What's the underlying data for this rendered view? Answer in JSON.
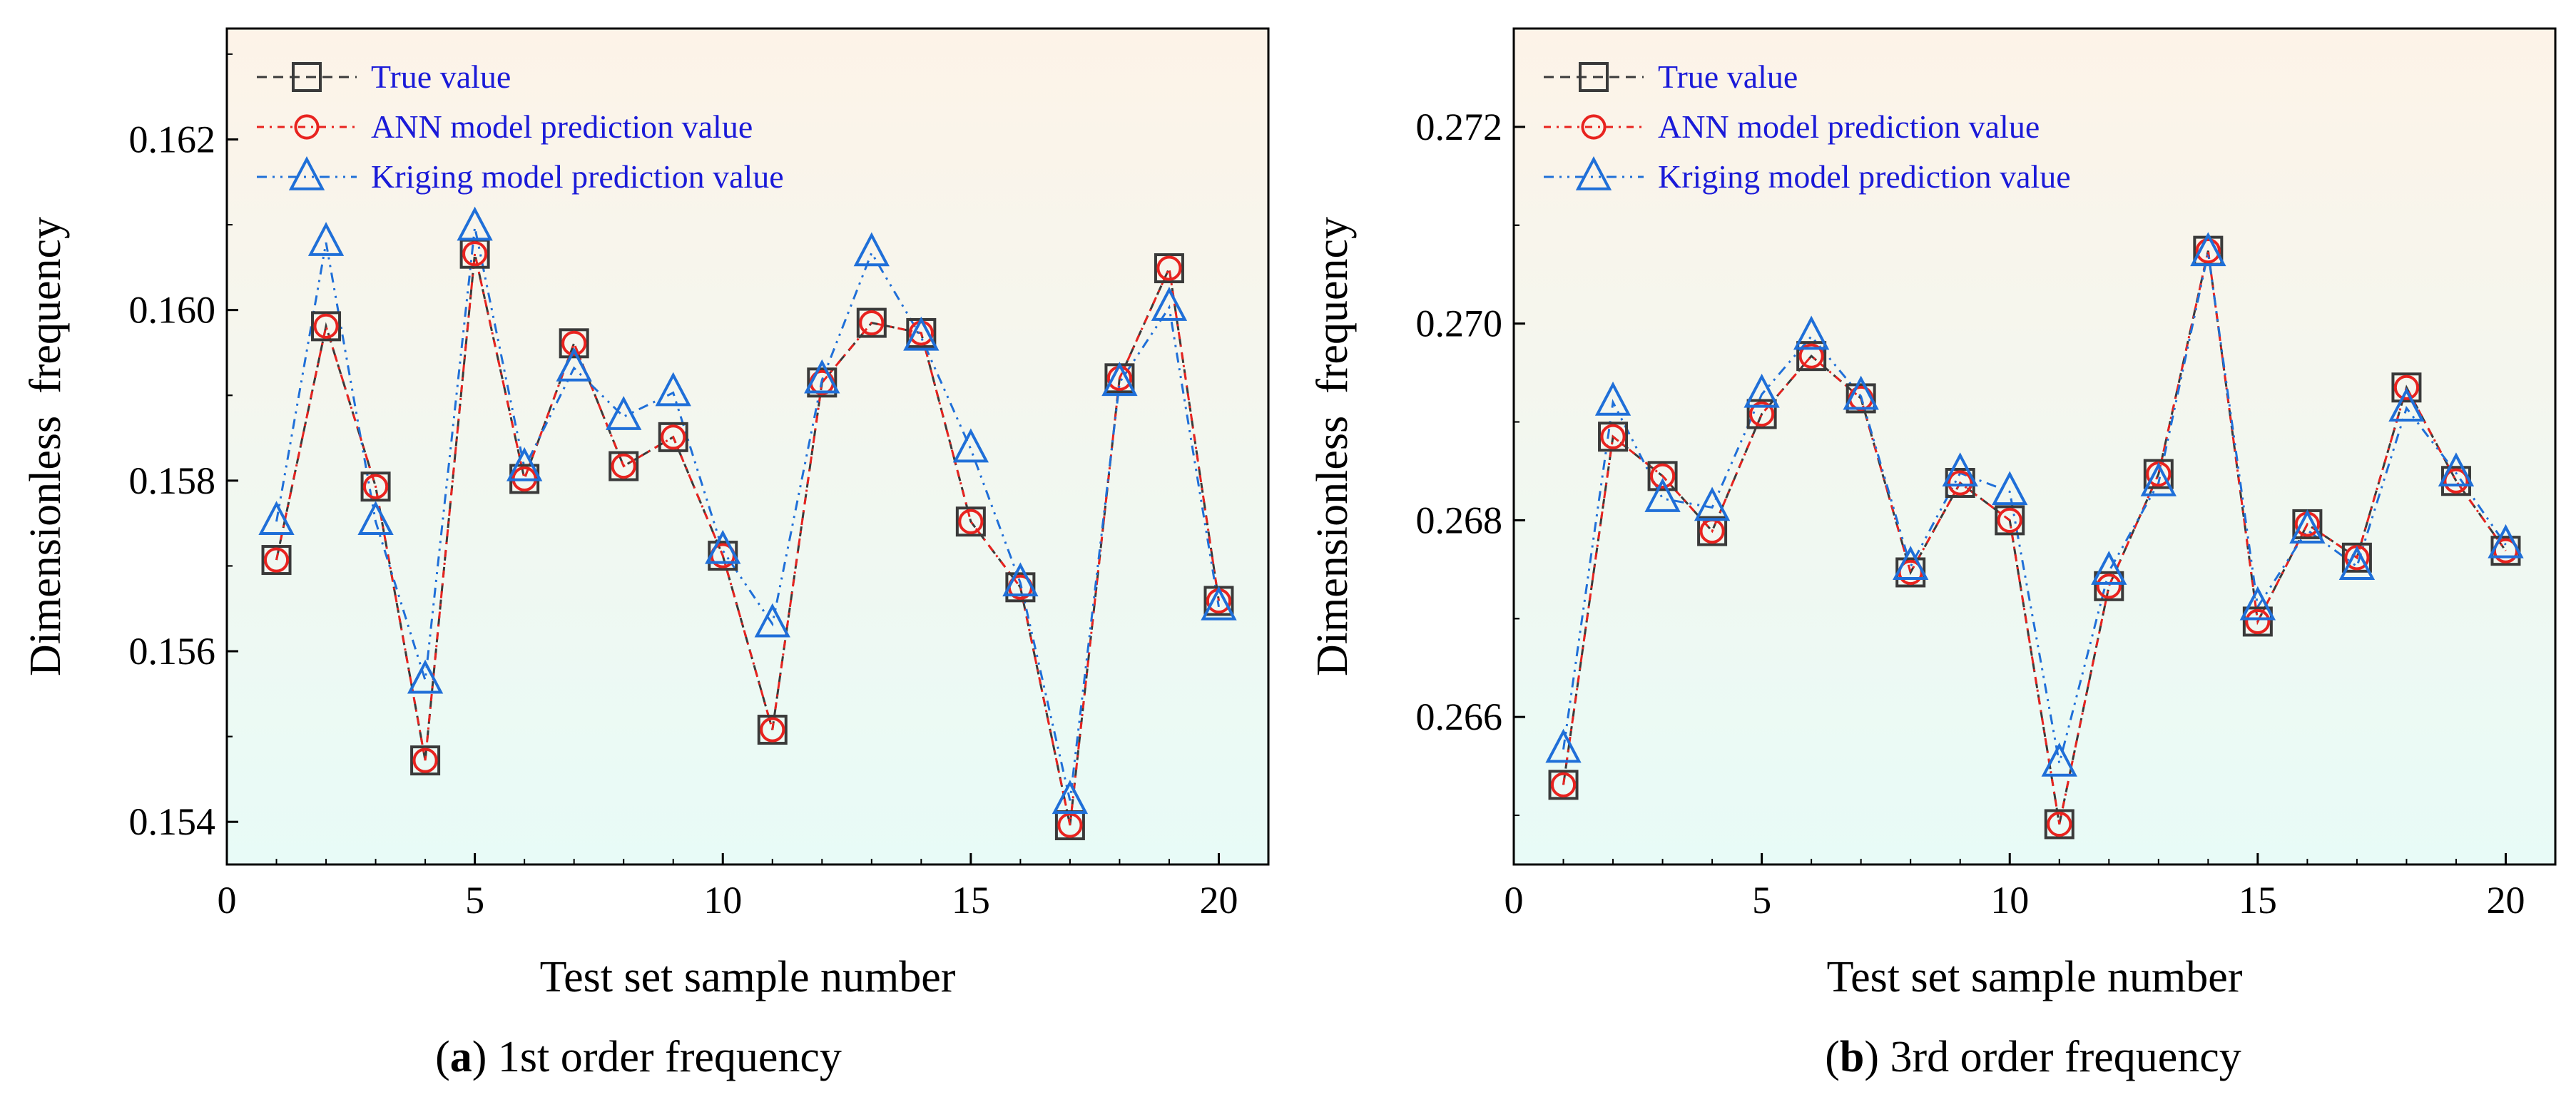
{
  "chart_data": [
    {
      "id": "a",
      "type": "line",
      "caption": {
        "letter": "a",
        "text": " 1st order frequency"
      },
      "xlabel": "Test set sample number",
      "ylabel": "Dimensionless  frequency",
      "xlim": [
        0,
        21
      ],
      "ylim": [
        0.1535,
        0.1633
      ],
      "xticks": [
        0,
        5,
        10,
        15,
        20
      ],
      "xtick_labels": [
        "0",
        "5",
        "10",
        "15",
        "20"
      ],
      "yticks": [
        0.154,
        0.156,
        0.158,
        0.16,
        0.162
      ],
      "ytick_labels": [
        "0.154",
        "0.156",
        "0.158",
        "0.160",
        "0.162"
      ],
      "x": [
        1,
        2,
        3,
        4,
        5,
        6,
        7,
        8,
        9,
        10,
        11,
        12,
        13,
        14,
        15,
        16,
        17,
        18,
        19,
        20
      ],
      "series": [
        {
          "name": "True value",
          "marker": "square",
          "color": "#3a3a3a",
          "values": [
            0.15707,
            0.15981,
            0.15793,
            0.15472,
            0.16066,
            0.15802,
            0.15961,
            0.15817,
            0.15851,
            0.15712,
            0.15508,
            0.15915,
            0.15985,
            0.15973,
            0.15752,
            0.15675,
            0.15396,
            0.1592,
            0.16049,
            0.15659
          ]
        },
        {
          "name": "ANN model prediction value",
          "marker": "circle",
          "color": "#e8231f",
          "values": [
            0.15707,
            0.15981,
            0.15793,
            0.15472,
            0.16066,
            0.15802,
            0.15961,
            0.15817,
            0.15851,
            0.15712,
            0.15508,
            0.15915,
            0.15985,
            0.15973,
            0.15752,
            0.15675,
            0.15396,
            0.1592,
            0.16049,
            0.15659
          ]
        },
        {
          "name": "Kriging model prediction value",
          "marker": "triangle",
          "color": "#1f6fd8",
          "values": [
            0.15752,
            0.16079,
            0.15752,
            0.15566,
            0.16097,
            0.15815,
            0.15932,
            0.15875,
            0.15903,
            0.15718,
            0.15632,
            0.15918,
            0.16067,
            0.15968,
            0.15837,
            0.1568,
            0.15425,
            0.15915,
            0.16003,
            0.15652
          ]
        }
      ],
      "legend": "top-left"
    },
    {
      "id": "b",
      "type": "line",
      "caption": {
        "letter": "b",
        "text": " 3rd order frequency"
      },
      "xlabel": "Test set sample number",
      "ylabel": "Dimensionless  frequency",
      "xlim": [
        0,
        21
      ],
      "ylim": [
        0.2645,
        0.273
      ],
      "xticks": [
        0,
        5,
        10,
        15,
        20
      ],
      "xtick_labels": [
        "0",
        "5",
        "10",
        "15",
        "20"
      ],
      "yticks": [
        0.266,
        0.268,
        0.27,
        0.272
      ],
      "ytick_labels": [
        "0.266",
        "0.268",
        "0.270",
        "0.272"
      ],
      "x": [
        1,
        2,
        3,
        4,
        5,
        6,
        7,
        8,
        9,
        10,
        11,
        12,
        13,
        14,
        15,
        16,
        17,
        18,
        19,
        20
      ],
      "series": [
        {
          "name": "True value",
          "marker": "square",
          "color": "#3a3a3a",
          "values": [
            0.26531,
            0.26885,
            0.26845,
            0.26789,
            0.26908,
            0.26967,
            0.26924,
            0.26747,
            0.26838,
            0.268,
            0.26491,
            0.26733,
            0.26847,
            0.27074,
            0.26697,
            0.26796,
            0.26762,
            0.26935,
            0.2684,
            0.26769
          ]
        },
        {
          "name": "ANN model prediction value",
          "marker": "circle",
          "color": "#e8231f",
          "values": [
            0.26531,
            0.26885,
            0.26845,
            0.26789,
            0.26908,
            0.26967,
            0.26924,
            0.26747,
            0.26838,
            0.268,
            0.26491,
            0.26733,
            0.26847,
            0.27074,
            0.26697,
            0.26796,
            0.26762,
            0.26935,
            0.2684,
            0.26769
          ]
        },
        {
          "name": "Kriging model prediction value",
          "marker": "triangle",
          "color": "#1f6fd8",
          "values": [
            0.26567,
            0.2692,
            0.26822,
            0.26813,
            0.26928,
            0.26987,
            0.26926,
            0.26753,
            0.26848,
            0.26829,
            0.26553,
            0.26748,
            0.26838,
            0.27072,
            0.26712,
            0.2679,
            0.26753,
            0.26914,
            0.26848,
            0.26775
          ]
        }
      ],
      "legend": "top-left"
    }
  ]
}
